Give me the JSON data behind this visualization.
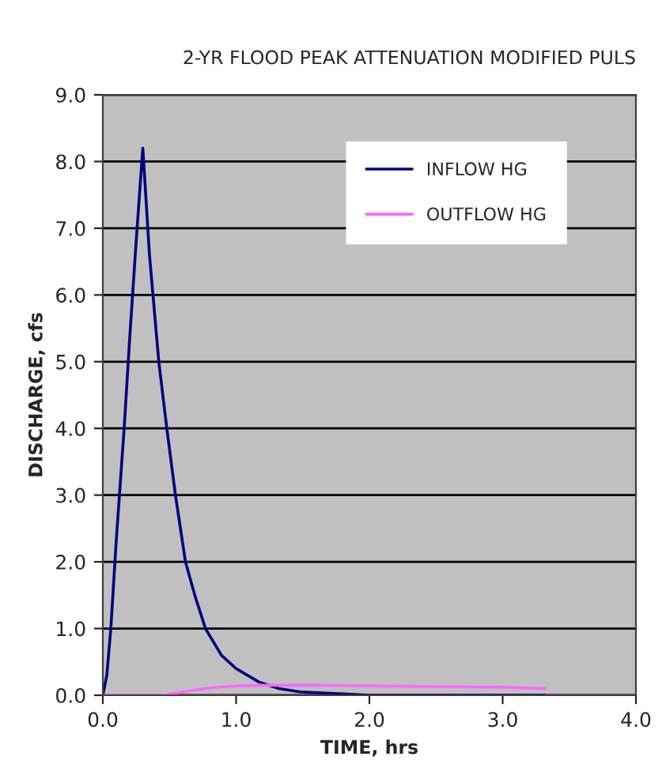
{
  "chart_data": {
    "type": "line",
    "title": "2-YR FLOOD PEAK ATTENUATION MODIFIED PULS",
    "xlabel": "TIME, hrs",
    "ylabel": "DISCHARGE, cfs",
    "series": [
      {
        "name": "INFLOW HG",
        "color": "#000080",
        "x": [
          0,
          0.03,
          0.06,
          0.1,
          0.16,
          0.2,
          0.25,
          0.3,
          0.35,
          0.42,
          0.48,
          0.545,
          0.62,
          0.69,
          0.77,
          0.89,
          1.0,
          1.17,
          1.32,
          1.48,
          1.8,
          2.0,
          2.5,
          3.0,
          3.32
        ],
        "values": [
          0,
          0.3,
          1.0,
          2.3,
          4.0,
          5.3,
          6.8,
          8.2,
          6.6,
          5.0,
          4.0,
          3.0,
          2.0,
          1.5,
          1.0,
          0.6,
          0.4,
          0.2,
          0.1,
          0.05,
          0.02,
          0,
          0,
          0,
          0
        ]
      },
      {
        "name": "OUTFLOW HG",
        "color": "#ff66ff",
        "x": [
          0,
          0.45,
          0.6,
          0.8,
          1.0,
          1.2,
          1.6,
          2.0,
          2.5,
          3.0,
          3.32
        ],
        "values": [
          0,
          0,
          0.05,
          0.11,
          0.14,
          0.15,
          0.15,
          0.14,
          0.13,
          0.12,
          0.1
        ]
      }
    ],
    "xlim": [
      0,
      4
    ],
    "xticks": [
      {
        "value": 0,
        "label": "0.0"
      },
      {
        "value": 1,
        "label": "1.0"
      },
      {
        "value": 2,
        "label": "2.0"
      },
      {
        "value": 3,
        "label": "3.0"
      },
      {
        "value": 4,
        "label": "4.0"
      }
    ],
    "ylim": [
      0,
      9
    ],
    "yticks": [
      {
        "value": 0,
        "label": "0.0"
      },
      {
        "value": 1,
        "label": "1.0"
      },
      {
        "value": 2,
        "label": "2.0"
      },
      {
        "value": 3,
        "label": "3.0"
      },
      {
        "value": 4,
        "label": "4.0"
      },
      {
        "value": 5,
        "label": "5.0"
      },
      {
        "value": 6,
        "label": "6.0"
      },
      {
        "value": 7,
        "label": "7.0"
      },
      {
        "value": 8,
        "label": "8.0"
      },
      {
        "value": 9,
        "label": "9.0"
      }
    ],
    "grid": "y",
    "legend": "top right"
  }
}
